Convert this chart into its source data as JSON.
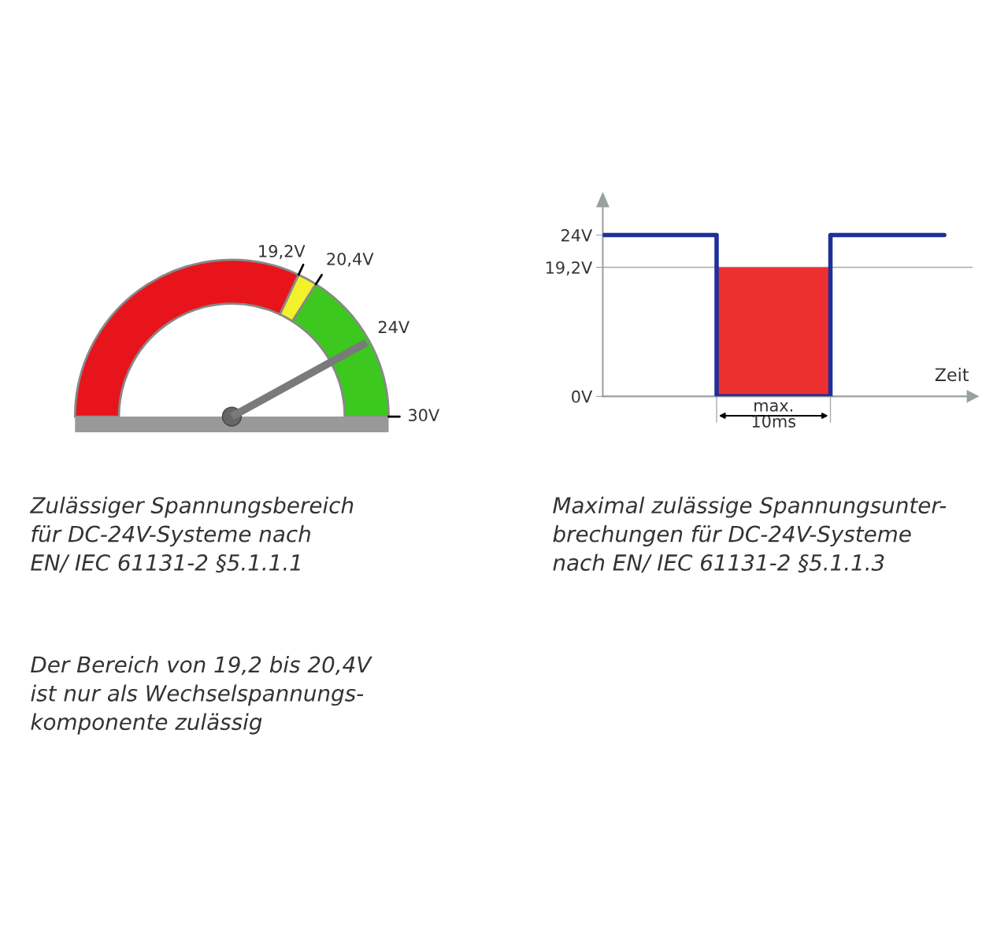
{
  "chart_data": [
    {
      "type": "donut",
      "categories": [
        "19,2V",
        "20,4V",
        "30V"
      ],
      "values": [
        19.2,
        1.2,
        9.6
      ],
      "colors": [
        "#e8141b",
        "#f2f22a",
        "#3cc81e"
      ],
      "needle": "30V",
      "annotations": [
        "24V",
        "Zulässiger Spannungsbereich\nfür DC-24V-Systeme nach\nEN/ IEC 61131-2 §5.1.1.1",
        "Der Bereich von 19,2 bis 20,4V\nist nur als Wechselspannungs-\nkomponente zulässig"
      ]
    },
    {
      "type": "step",
      "categories": [
        null,
        null,
        null,
        null
      ],
      "series": [
        {
          "color": "#1f2f9a",
          "values": [
            24,
            0,
            24,
            24
          ]
        }
      ],
      "ylim": [
        0,
        29
      ],
      "yticks": [
        {
          "value": 0,
          "label": "0V"
        },
        {
          "value": 19.2,
          "label": "19,2V"
        },
        {
          "value": 24,
          "label": "24V"
        }
      ],
      "xlabel": "Zeit",
      "tick_labels": "y",
      "grid": false,
      "legend": false,
      "ref_lines": [
        {
          "axis": "y",
          "value": 19.2,
          "color": "#aaaaaa"
        }
      ],
      "bands": [
        {
          "axis": "y",
          "from": 0,
          "to": 19.2,
          "color": "#ec3030"
        }
      ],
      "annotations": [
        "max.\n10ms",
        "Maximal zulässige Spannungsunter-\nbrechungen für DC-24V-Systeme\nnach EN/ IEC 61131-2 §5.1.1.3"
      ]
    }
  ]
}
